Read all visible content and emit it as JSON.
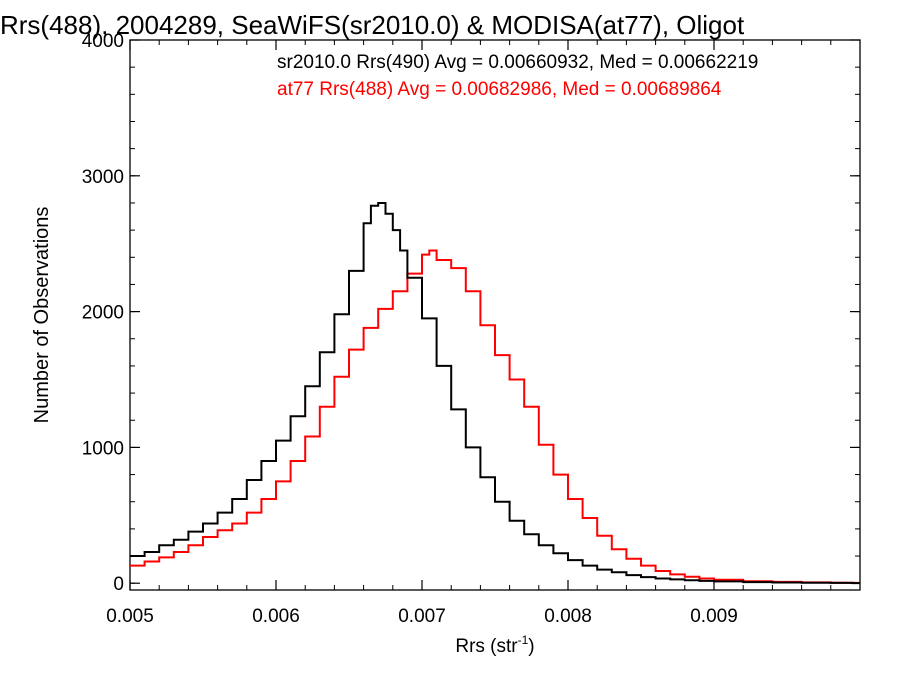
{
  "chart_data": {
    "type": "line",
    "step": true,
    "title": "Rrs(488), 2004289, SeaWiFS(sr2010.0) & MODISA(at77), Oligot",
    "xlabel": "Rrs (str",
    "xlabel_sup": "-1",
    "xlabel_close": ")",
    "ylabel": "Number of Observations",
    "xlim": [
      0.005,
      0.01
    ],
    "ylim": [
      -50,
      4000
    ],
    "xticks": [
      0.005,
      0.006,
      0.007,
      0.008,
      0.009
    ],
    "xtick_labels": [
      "0.005",
      "0.006",
      "0.007",
      "0.008",
      "0.009"
    ],
    "yticks": [
      0,
      1000,
      2000,
      3000,
      4000
    ],
    "ytick_labels": [
      "0",
      "1000",
      "2000",
      "3000",
      "4000"
    ],
    "legend_position": "top-right",
    "grid": false,
    "series": [
      {
        "name": "sr2010.0 Rrs(490) Avg = 0.00660932, Med = 0.00662219",
        "color": "#000000",
        "x": [
          0.005,
          0.0051,
          0.0052,
          0.0053,
          0.0054,
          0.0055,
          0.0056,
          0.0057,
          0.0058,
          0.0059,
          0.006,
          0.0061,
          0.0062,
          0.0063,
          0.0064,
          0.0065,
          0.0066,
          0.00665,
          0.0067,
          0.00675,
          0.0068,
          0.00685,
          0.0069,
          0.007,
          0.0071,
          0.0072,
          0.0073,
          0.0074,
          0.0075,
          0.0076,
          0.0077,
          0.0078,
          0.0079,
          0.008,
          0.0081,
          0.0082,
          0.0083,
          0.0084,
          0.0085,
          0.0086,
          0.0087,
          0.0088,
          0.0089,
          0.009,
          0.0092,
          0.0094,
          0.0096,
          0.0098,
          0.00995
        ],
        "y": [
          200,
          230,
          280,
          320,
          380,
          440,
          520,
          620,
          760,
          900,
          1050,
          1230,
          1450,
          1700,
          1980,
          2300,
          2650,
          2780,
          2800,
          2720,
          2600,
          2450,
          2250,
          1950,
          1600,
          1280,
          1000,
          780,
          600,
          460,
          360,
          280,
          220,
          170,
          130,
          100,
          80,
          60,
          45,
          35,
          28,
          22,
          17,
          13,
          8,
          5,
          3,
          2,
          1
        ]
      },
      {
        "name": "at77 Rrs(488) Avg = 0.00682986, Med = 0.00689864",
        "color": "#ff0000",
        "x": [
          0.005,
          0.0051,
          0.0052,
          0.0053,
          0.0054,
          0.0055,
          0.0056,
          0.0057,
          0.0058,
          0.0059,
          0.006,
          0.0061,
          0.0062,
          0.0063,
          0.0064,
          0.0065,
          0.0066,
          0.0067,
          0.0068,
          0.0069,
          0.007,
          0.00705,
          0.0071,
          0.0072,
          0.0073,
          0.0074,
          0.0075,
          0.0076,
          0.0077,
          0.0078,
          0.0079,
          0.008,
          0.0081,
          0.0082,
          0.0083,
          0.0084,
          0.0085,
          0.0086,
          0.0087,
          0.0088,
          0.0089,
          0.009,
          0.0092,
          0.0094,
          0.0096,
          0.0098,
          0.00995
        ],
        "y": [
          130,
          160,
          190,
          230,
          280,
          340,
          390,
          440,
          520,
          620,
          750,
          900,
          1080,
          1300,
          1520,
          1720,
          1880,
          2020,
          2150,
          2280,
          2420,
          2450,
          2380,
          2320,
          2150,
          1900,
          1680,
          1500,
          1300,
          1020,
          800,
          620,
          480,
          350,
          250,
          180,
          130,
          90,
          65,
          48,
          35,
          25,
          15,
          10,
          6,
          4,
          2
        ]
      }
    ]
  }
}
